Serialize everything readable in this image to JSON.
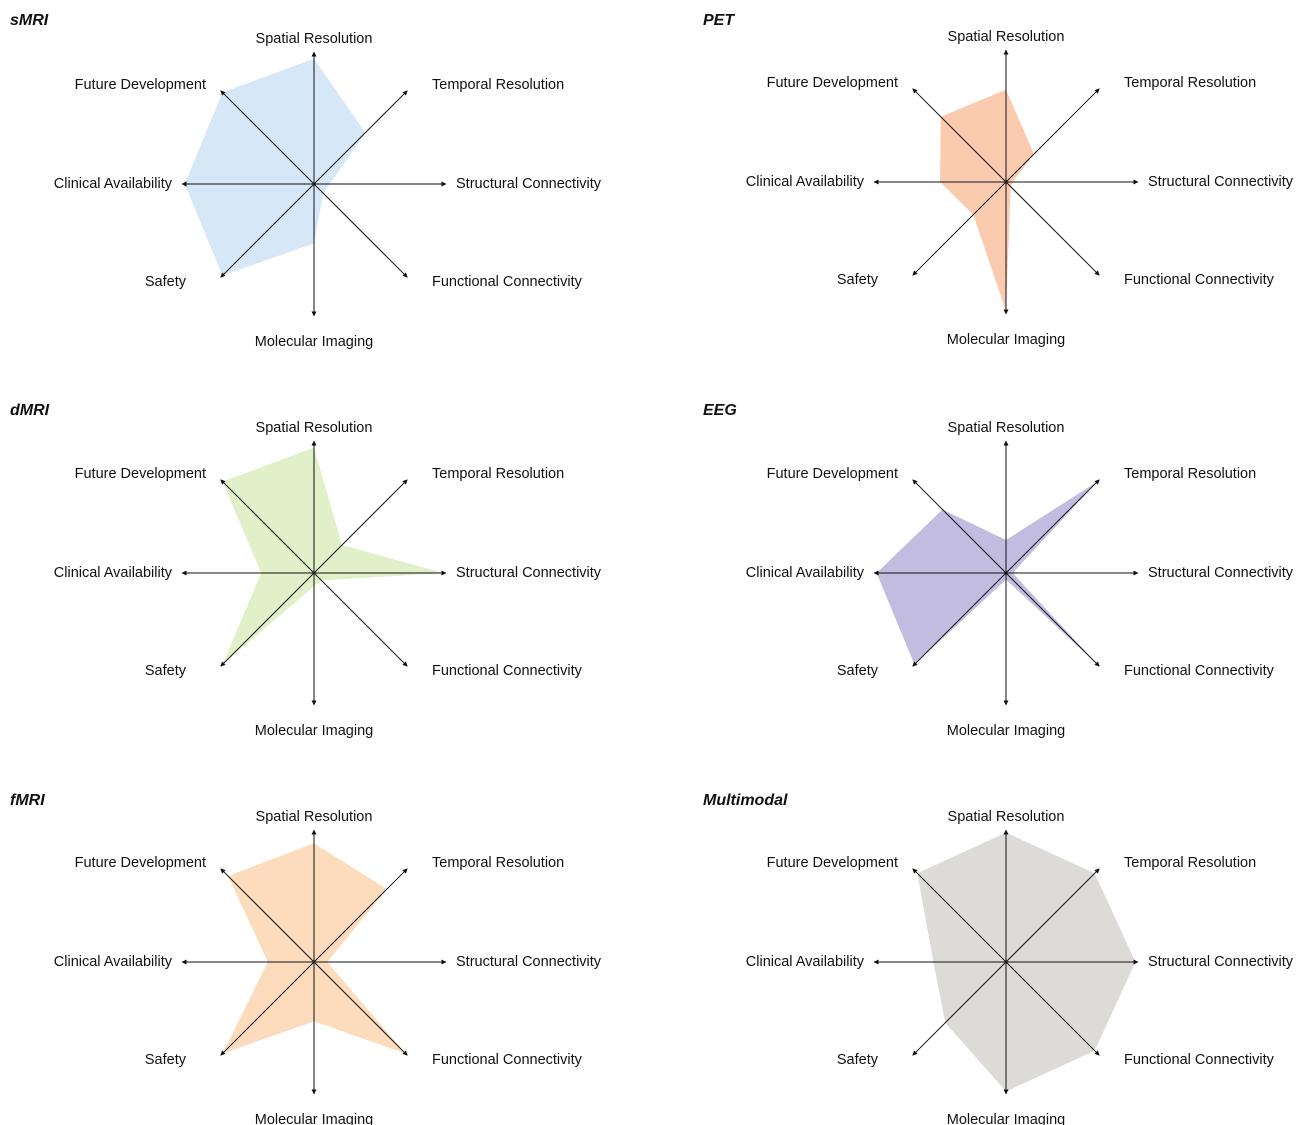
{
  "axes": [
    "Spatial Resolution",
    "Temporal Resolution",
    "Structural Connectivity",
    "Functional Connectivity",
    "Molecular Imaging",
    "Safety",
    "Clinical Availability",
    "Future Development"
  ],
  "chart_data": [
    {
      "type": "radar",
      "title": "sMRI",
      "color": "#d6e7f7",
      "axes": [
        "Spatial Resolution",
        "Temporal Resolution",
        "Structural Connectivity",
        "Functional Connectivity",
        "Molecular Imaging",
        "Safety",
        "Clinical Availability",
        "Future Development"
      ],
      "values": [
        0.95,
        0.55,
        0.12,
        0.1,
        0.45,
        0.98,
        0.98,
        0.98
      ],
      "rlim": [
        0,
        1
      ]
    },
    {
      "type": "radar",
      "title": "PET",
      "color": "#fbcbb0",
      "axes": [
        "Spatial Resolution",
        "Temporal Resolution",
        "Structural Connectivity",
        "Functional Connectivity",
        "Molecular Imaging",
        "Safety",
        "Clinical Availability",
        "Future Development"
      ],
      "values": [
        0.7,
        0.3,
        0.05,
        0.05,
        0.98,
        0.35,
        0.5,
        0.7
      ],
      "rlim": [
        0,
        1
      ]
    },
    {
      "type": "radar",
      "title": "dMRI",
      "color": "#e0f0c8",
      "axes": [
        "Spatial Resolution",
        "Temporal Resolution",
        "Structural Connectivity",
        "Functional Connectivity",
        "Molecular Imaging",
        "Safety",
        "Clinical Availability",
        "Future Development"
      ],
      "values": [
        0.95,
        0.3,
        0.98,
        0.08,
        0.1,
        0.98,
        0.4,
        0.98
      ],
      "rlim": [
        0,
        1
      ]
    },
    {
      "type": "radar",
      "title": "EEG",
      "color": "#c2bde0",
      "axes": [
        "Spatial Resolution",
        "Temporal Resolution",
        "Structural Connectivity",
        "Functional Connectivity",
        "Molecular Imaging",
        "Safety",
        "Clinical Availability",
        "Future Development"
      ],
      "values": [
        0.25,
        0.98,
        0.05,
        0.98,
        0.05,
        0.98,
        0.98,
        0.68
      ],
      "rlim": [
        0,
        1
      ]
    },
    {
      "type": "radar",
      "title": "fMRI",
      "color": "#fcdcbc",
      "axes": [
        "Spatial Resolution",
        "Temporal Resolution",
        "Structural Connectivity",
        "Functional Connectivity",
        "Molecular Imaging",
        "Safety",
        "Clinical Availability",
        "Future Development"
      ],
      "values": [
        0.9,
        0.78,
        0.1,
        0.98,
        0.45,
        0.98,
        0.35,
        0.92
      ],
      "rlim": [
        0,
        1
      ]
    },
    {
      "type": "radar",
      "title": "Multimodal",
      "color": "#dcdbd8",
      "axes": [
        "Spatial Resolution",
        "Temporal Resolution",
        "Structural Connectivity",
        "Functional Connectivity",
        "Molecular Imaging",
        "Safety",
        "Clinical Availability",
        "Future Development"
      ],
      "values": [
        0.98,
        0.95,
        0.98,
        0.95,
        0.98,
        0.65,
        0.55,
        0.95
      ],
      "rlim": [
        0,
        1
      ]
    }
  ]
}
